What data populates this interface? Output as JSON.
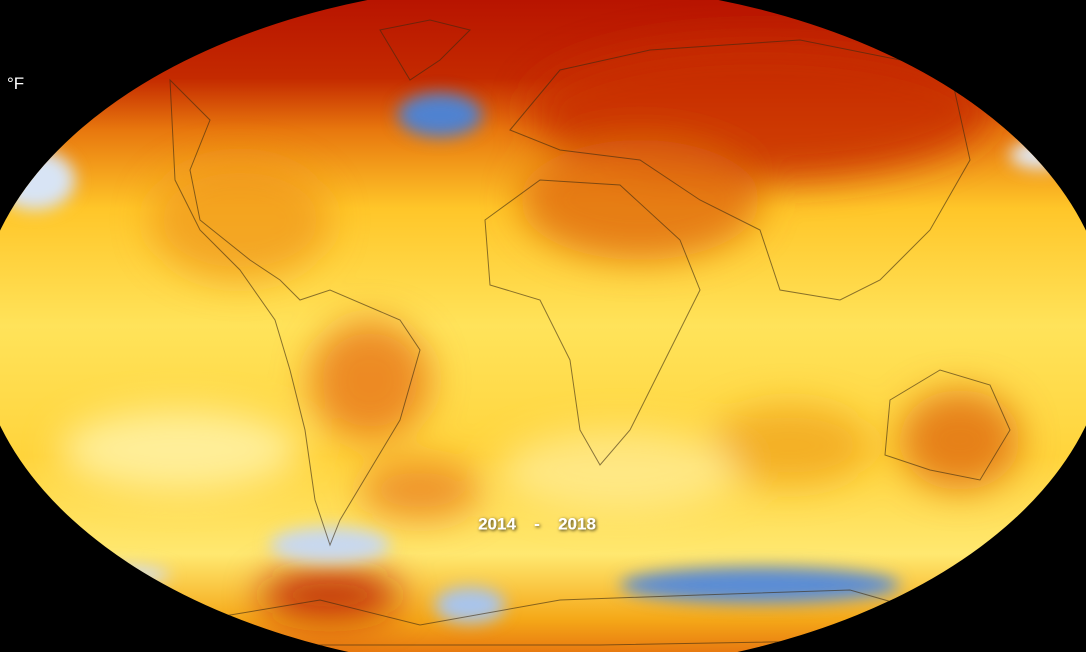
{
  "unit_label": "°F",
  "period": {
    "start": "2014",
    "separator": "-",
    "end": "2018"
  }
}
